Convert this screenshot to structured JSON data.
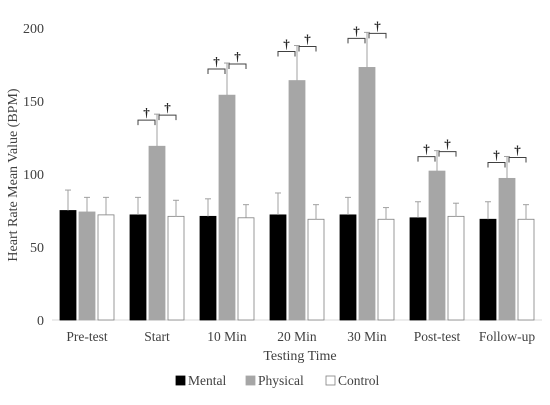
{
  "chart_data": {
    "type": "bar",
    "xlabel": "Testing Time",
    "ylabel": "Heart Rate Mean Value (BPM)",
    "ylim": [
      0,
      200
    ],
    "yticks": [
      0,
      50,
      100,
      150,
      200
    ],
    "grid": false,
    "legend_position": "bottom",
    "categories": [
      "Pre-test",
      "Start",
      "10 Min",
      "20 Min",
      "30 Min",
      "Post-test",
      "Follow-up"
    ],
    "series": [
      {
        "name": "Mental",
        "color": "#000000",
        "values": [
          75,
          72,
          71,
          72,
          72,
          70,
          69
        ],
        "error": [
          14,
          12,
          12,
          15,
          12,
          11,
          12
        ]
      },
      {
        "name": "Physical",
        "color": "#a6a6a6",
        "values": [
          74,
          119,
          154,
          164,
          173,
          102,
          97
        ],
        "error": [
          10,
          22,
          22,
          24,
          24,
          14,
          15
        ]
      },
      {
        "name": "Control",
        "color": "#ffffff",
        "values": [
          72,
          71,
          70,
          69,
          69,
          71,
          69
        ],
        "error": [
          12,
          11,
          9,
          10,
          8,
          9,
          10
        ]
      }
    ],
    "significance_symbol": "†",
    "significance_categories": [
      "Start",
      "10 Min",
      "20 Min",
      "30 Min",
      "Post-test",
      "Follow-up"
    ]
  }
}
